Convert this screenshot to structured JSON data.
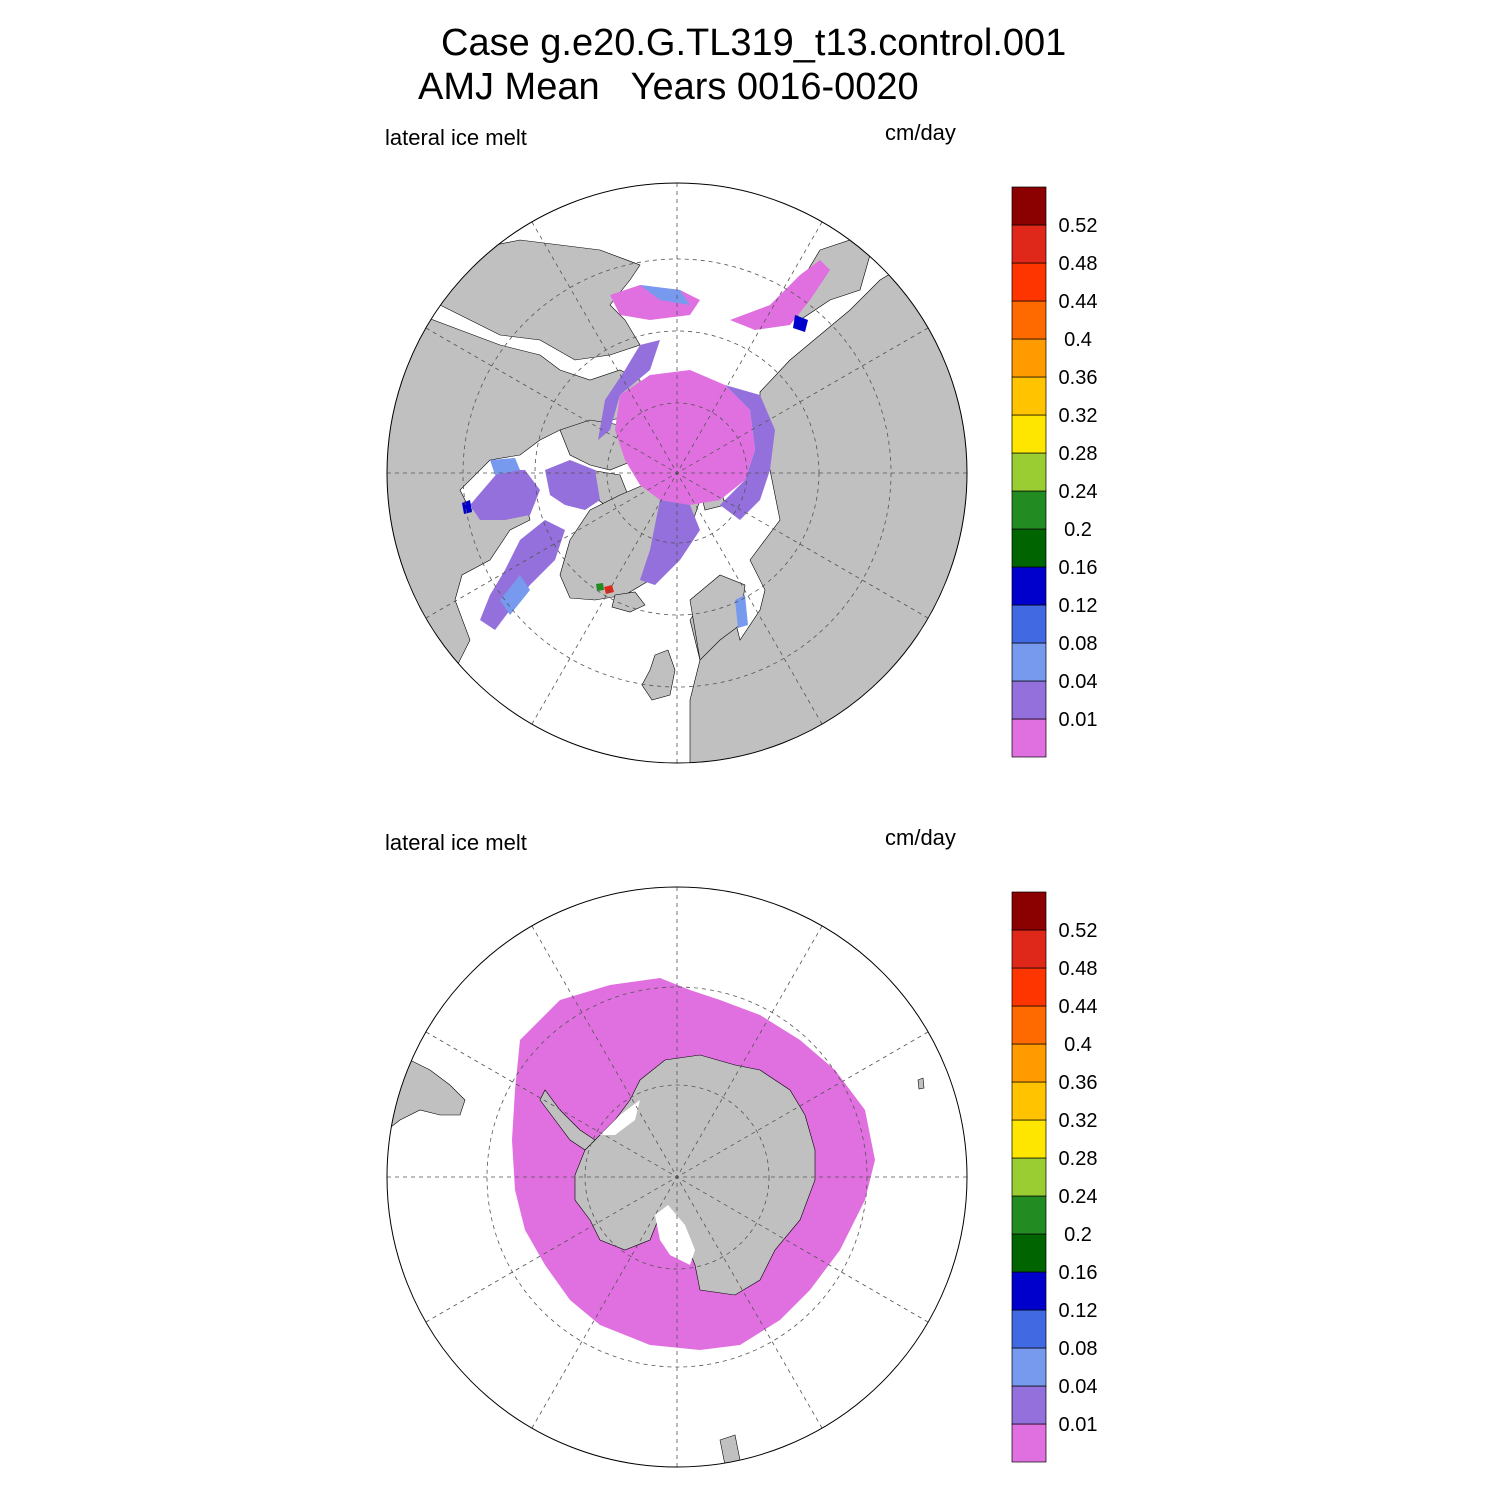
{
  "figure": {
    "title_line1": "Case g.e20.G.TL319_t13.control.001",
    "title_line2": "AMJ Mean   Years 0016-0020"
  },
  "colors": {
    "land": "#c0c0c0",
    "ocean": "#ffffff",
    "grid": "#555555"
  },
  "colorbar": {
    "levels": [
      "0.01",
      "0.04",
      "0.08",
      "0.12",
      "0.16",
      "0.2",
      "0.24",
      "0.28",
      "0.32",
      "0.36",
      "0.4",
      "0.44",
      "0.48",
      "0.52"
    ],
    "colors": [
      "#e070e0",
      "#9370db",
      "#7799ee",
      "#4169e1",
      "#0000cd",
      "#006400",
      "#228b22",
      "#9acd32",
      "#ffe600",
      "#ffc300",
      "#ff9b00",
      "#ff6a00",
      "#ff3500",
      "#e0281a",
      "#8b0000"
    ]
  },
  "panels": [
    {
      "id": "arctic",
      "left_label": "lateral ice melt",
      "right_label": "cm/day",
      "hemisphere": "north"
    },
    {
      "id": "antarctic",
      "left_label": "lateral ice melt",
      "right_label": "cm/day",
      "hemisphere": "south"
    }
  ]
}
